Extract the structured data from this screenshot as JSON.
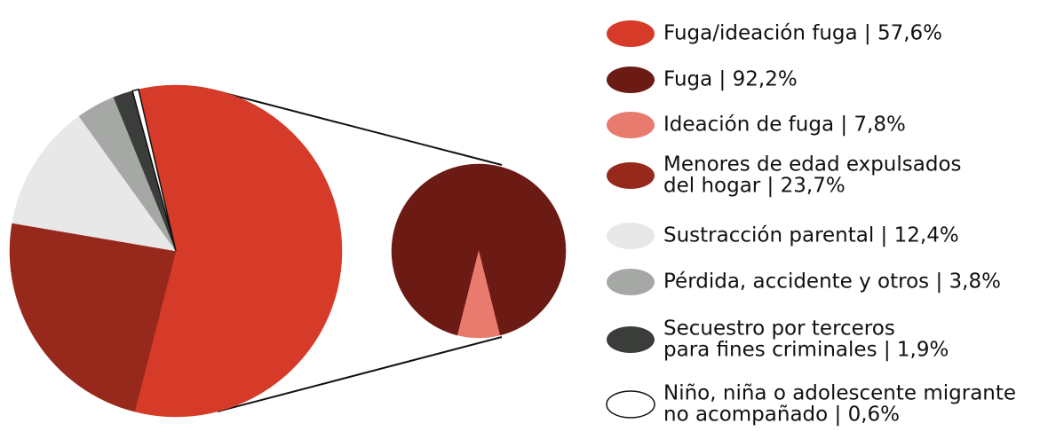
{
  "chart_data": {
    "type": "pie_of_pie",
    "slices": [
      {
        "label": [
          "Fuga/ideación fuga | 57,6%"
        ],
        "value": 57.6,
        "color": "#d63a28"
      },
      {
        "label": [
          "Menores de edad expulsados",
          "del hogar | 23,7%"
        ],
        "value": 23.7,
        "color": "#97281c"
      },
      {
        "label": [
          "Sustracción parental | 12,4%"
        ],
        "value": 12.4,
        "color": "#e8e8e8"
      },
      {
        "label": [
          "Pérdida, accidente y otros | 3,8%"
        ],
        "value": 3.8,
        "color": "#a5a8a5"
      },
      {
        "label": [
          "Secuestro por terceros",
          "para fines criminales | 1,9%"
        ],
        "value": 1.9,
        "color": "#3b3d3b"
      },
      {
        "label": [
          "Niño, niña o adolescente migrante",
          "no acompañado | 0,6%"
        ],
        "value": 0.6,
        "color": "#ffffff"
      }
    ],
    "sub_slices": [
      {
        "label": [
          "Fuga | 92,2%"
        ],
        "value": 92.2,
        "color": "#6b1a14"
      },
      {
        "label": [
          "Ideación de fuga | 7,8%"
        ],
        "value": 7.8,
        "color": "#e87a6e"
      }
    ]
  }
}
